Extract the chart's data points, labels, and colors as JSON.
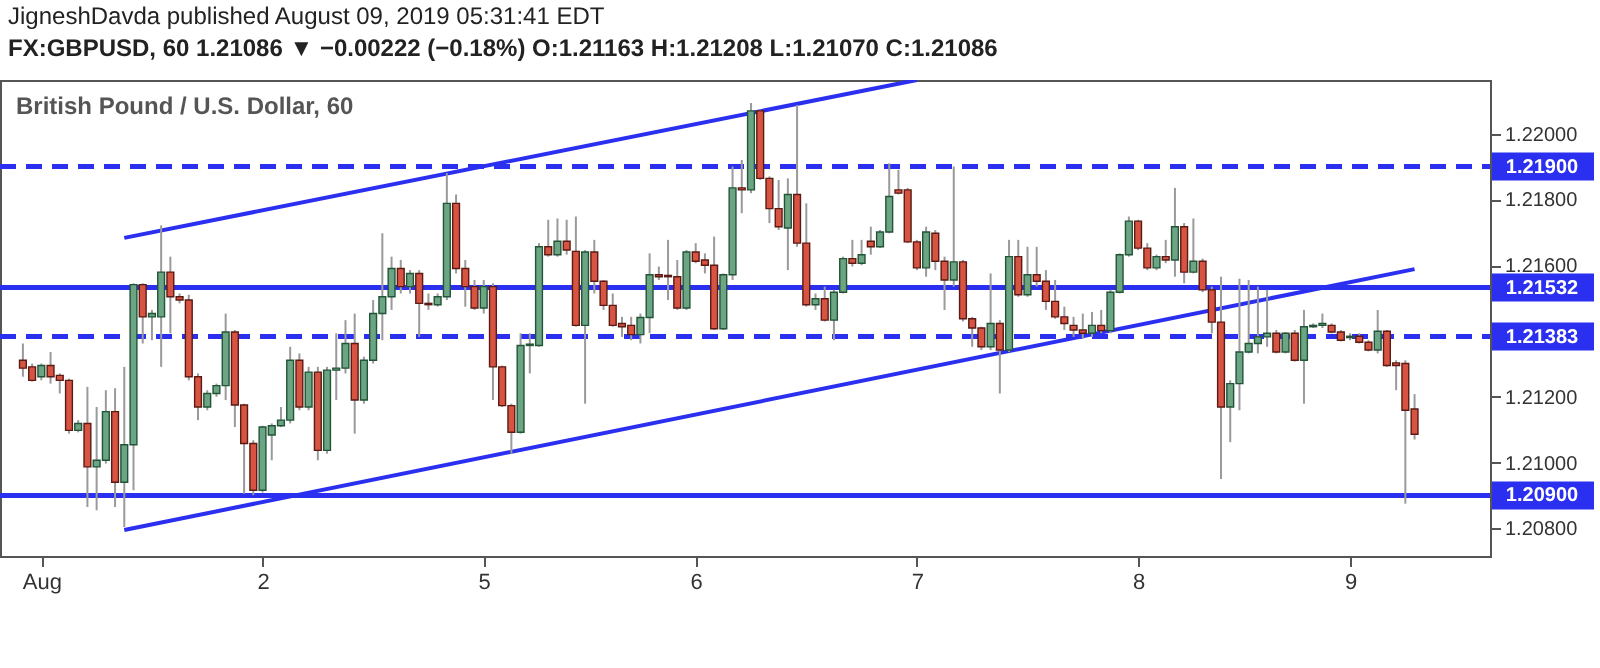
{
  "chart_data": {
    "type": "candlestick",
    "title": "British Pound / U.S. Dollar, 60",
    "annotations": [
      "JigneshDavda published August 09, 2019 05:31:41 EDT",
      "FX:GBPUSD, 60  1.21086 ▼ −0.00222 (−0.18%)  O:1.21163  H:1.21208  L:1.21070  C:1.21086"
    ],
    "categories": [
      null,
      null,
      "Aug",
      null,
      null,
      null,
      null,
      null,
      null,
      null,
      null,
      null,
      null,
      null,
      null,
      null,
      null,
      null,
      null,
      null,
      null,
      null,
      null,
      null,
      null,
      null,
      "2",
      null,
      null,
      null,
      null,
      null,
      null,
      null,
      null,
      null,
      null,
      null,
      null,
      null,
      null,
      null,
      null,
      null,
      null,
      null,
      null,
      null,
      null,
      null,
      "5",
      null,
      null,
      null,
      null,
      null,
      null,
      null,
      null,
      null,
      null,
      null,
      null,
      null,
      null,
      null,
      null,
      null,
      null,
      null,
      null,
      null,
      null,
      "6",
      null,
      null,
      null,
      null,
      null,
      null,
      null,
      null,
      null,
      null,
      null,
      null,
      null,
      null,
      null,
      null,
      null,
      null,
      null,
      null,
      null,
      null,
      null,
      "7",
      null,
      null,
      null,
      null,
      null,
      null,
      null,
      null,
      null,
      null,
      null,
      null,
      null,
      null,
      null,
      null,
      null,
      null,
      null,
      null,
      null,
      null,
      null,
      "8",
      null,
      null,
      null,
      null,
      null,
      null,
      null,
      null,
      null,
      null,
      null,
      null,
      null,
      null,
      null,
      null,
      null,
      null,
      null,
      null,
      null,
      null,
      "9",
      null,
      null,
      null,
      null,
      null,
      null,
      null
    ],
    "ohlc": [
      [
        1.21311,
        1.21362,
        1.21261,
        1.21287
      ],
      [
        1.21291,
        1.21301,
        1.21246,
        1.2125
      ],
      [
        1.21261,
        1.21301,
        1.2125,
        1.21295
      ],
      [
        1.21295,
        1.21336,
        1.2124,
        1.21261
      ],
      [
        1.21265,
        1.21271,
        1.2121,
        1.2125
      ],
      [
        1.2125,
        1.21255,
        1.21088,
        1.21098
      ],
      [
        1.21098,
        1.21129,
        1.21092,
        1.21119
      ],
      [
        1.21119,
        1.2123,
        1.20865,
        1.20987
      ],
      [
        1.20987,
        1.21169,
        1.20855,
        1.21007
      ],
      [
        1.21007,
        1.2122,
        1.20997,
        1.21155
      ],
      [
        1.21155,
        1.21226,
        1.20865,
        1.2094
      ],
      [
        1.2094,
        1.21291,
        1.20804,
        1.21054
      ],
      [
        1.21054,
        1.21545,
        1.20916,
        1.21541
      ],
      [
        1.21541,
        1.21545,
        1.21362,
        1.21443
      ],
      [
        1.21443,
        1.21464,
        1.21372,
        1.21453
      ],
      [
        1.21443,
        1.21721,
        1.21291,
        1.21579
      ],
      [
        1.21579,
        1.21626,
        1.21393,
        1.21504
      ],
      [
        1.21504,
        1.21514,
        1.21484,
        1.21494
      ],
      [
        1.21494,
        1.2151,
        1.2125,
        1.21261
      ],
      [
        1.21261,
        1.21271,
        1.21129,
        1.21169
      ],
      [
        1.21169,
        1.2122,
        1.21159,
        1.2121
      ],
      [
        1.2121,
        1.2124,
        1.212,
        1.21234
      ],
      [
        1.21234,
        1.21453,
        1.2119,
        1.21397
      ],
      [
        1.21397,
        1.21403,
        1.21108,
        1.21175
      ],
      [
        1.21175,
        1.21179,
        1.20905,
        1.21058
      ],
      [
        1.21058,
        1.21068,
        1.20901,
        1.20916
      ],
      [
        1.20916,
        1.21112,
        1.20909,
        1.21108
      ],
      [
        1.21084,
        1.21119,
        1.21007,
        1.21112
      ],
      [
        1.21112,
        1.21169,
        1.21108,
        1.21129
      ],
      [
        1.21129,
        1.21352,
        1.21119,
        1.21311
      ],
      [
        1.21311,
        1.21332,
        1.21159,
        1.21169
      ],
      [
        1.21169,
        1.21291,
        1.21159,
        1.21275
      ],
      [
        1.21275,
        1.21291,
        1.21007,
        1.21037
      ],
      [
        1.21037,
        1.21291,
        1.21027,
        1.21281
      ],
      [
        1.21281,
        1.21393,
        1.2119,
        1.21287
      ],
      [
        1.21287,
        1.21433,
        1.21271,
        1.21362
      ],
      [
        1.21362,
        1.21453,
        1.21088,
        1.2119
      ],
      [
        1.2119,
        1.21322,
        1.21179,
        1.21311
      ],
      [
        1.21311,
        1.21494,
        1.21301,
        1.21453
      ],
      [
        1.21453,
        1.21697,
        1.21372,
        1.21504
      ],
      [
        1.21504,
        1.21626,
        1.21464,
        1.2159
      ],
      [
        1.2159,
        1.21616,
        1.21514,
        1.21535
      ],
      [
        1.21535,
        1.21585,
        1.21514,
        1.21575
      ],
      [
        1.21575,
        1.21585,
        1.21382,
        1.21484
      ],
      [
        1.21484,
        1.21514,
        1.21464,
        1.2148
      ],
      [
        1.2148,
        1.21514,
        1.21474,
        1.21504
      ],
      [
        1.21504,
        1.2188,
        1.21494,
        1.21788
      ],
      [
        1.21788,
        1.21815,
        1.21575,
        1.2159
      ],
      [
        1.2159,
        1.21616,
        1.21474,
        1.21535
      ],
      [
        1.21535,
        1.21555,
        1.21464,
        1.2147
      ],
      [
        1.2147,
        1.21555,
        1.21453,
        1.21535
      ],
      [
        1.21535,
        1.21545,
        1.2119,
        1.21291
      ],
      [
        1.21291,
        1.21295,
        1.21169,
        1.21173
      ],
      [
        1.21173,
        1.21179,
        1.21027,
        1.21092
      ],
      [
        1.21092,
        1.21393,
        1.21088,
        1.21356
      ],
      [
        1.21356,
        1.21393,
        1.21271,
        1.2136
      ],
      [
        1.21356,
        1.21667,
        1.21352,
        1.21656
      ],
      [
        1.21656,
        1.21738,
        1.21626,
        1.21632
      ],
      [
        1.21632,
        1.21742,
        1.21626,
        1.21673
      ],
      [
        1.21673,
        1.21738,
        1.21632,
        1.21646
      ],
      [
        1.21642,
        1.21748,
        1.21413,
        1.21417
      ],
      [
        1.21417,
        1.21646,
        1.21179,
        1.2164
      ],
      [
        1.2164,
        1.21677,
        1.21514,
        1.21551
      ],
      [
        1.21551,
        1.21555,
        1.21464,
        1.21478
      ],
      [
        1.21478,
        1.21514,
        1.21413,
        1.21417
      ],
      [
        1.21423,
        1.21443,
        1.21382,
        1.21413
      ],
      [
        1.21417,
        1.21443,
        1.21372,
        1.21389
      ],
      [
        1.21389,
        1.21453,
        1.21362,
        1.21441
      ],
      [
        1.21441,
        1.21636,
        1.21393,
        1.21571
      ],
      [
        1.21571,
        1.21596,
        1.21555,
        1.21565
      ],
      [
        1.21569,
        1.21677,
        1.21494,
        1.21565
      ],
      [
        1.21565,
        1.21616,
        1.21464,
        1.2147
      ],
      [
        1.2147,
        1.21646,
        1.21464,
        1.2164
      ],
      [
        1.2164,
        1.21667,
        1.21606,
        1.21612
      ],
      [
        1.21616,
        1.21636,
        1.21575,
        1.216
      ],
      [
        1.216,
        1.21687,
        1.21403,
        1.21407
      ],
      [
        1.21407,
        1.21575,
        1.21403,
        1.21571
      ],
      [
        1.21571,
        1.219,
        1.21555,
        1.21835
      ],
      [
        1.21835,
        1.2192,
        1.21758,
        1.21829
      ],
      [
        1.21829,
        1.22093,
        1.21819,
        1.22069
      ],
      [
        1.22069,
        1.22073,
        1.21859,
        1.21864
      ],
      [
        1.21864,
        1.2187,
        1.21728,
        1.21772
      ],
      [
        1.21772,
        1.21859,
        1.21707,
        1.21717
      ],
      [
        1.21713,
        1.21864,
        1.21585,
        1.21815
      ],
      [
        1.21815,
        1.22087,
        1.21656,
        1.21667
      ],
      [
        1.21667,
        1.21788,
        1.21474,
        1.2148
      ],
      [
        1.2148,
        1.21514,
        1.21464,
        1.21498
      ],
      [
        1.21498,
        1.21535,
        1.21429,
        1.21433
      ],
      [
        1.21433,
        1.21525,
        1.21372,
        1.21518
      ],
      [
        1.21518,
        1.21626,
        1.21514,
        1.2162
      ],
      [
        1.2162,
        1.21677,
        1.21596,
        1.21606
      ],
      [
        1.21606,
        1.21677,
        1.216,
        1.21632
      ],
      [
        1.21673,
        1.21717,
        1.21632,
        1.21656
      ],
      [
        1.21656,
        1.21707,
        1.21652,
        1.21701
      ],
      [
        1.21701,
        1.2191,
        1.21697,
        1.21809
      ],
      [
        1.21829,
        1.2189,
        1.21815,
        1.21819
      ],
      [
        1.21829,
        1.21835,
        1.21667,
        1.21671
      ],
      [
        1.21671,
        1.21677,
        1.21585,
        1.21592
      ],
      [
        1.21592,
        1.21717,
        1.21565,
        1.21701
      ],
      [
        1.21697,
        1.21707,
        1.21585,
        1.21612
      ],
      [
        1.21612,
        1.21626,
        1.21464,
        1.21555
      ],
      [
        1.21555,
        1.219,
        1.21535,
        1.2161
      ],
      [
        1.2161,
        1.21616,
        1.21429,
        1.21437
      ],
      [
        1.21437,
        1.21443,
        1.21352,
        1.21409
      ],
      [
        1.21409,
        1.21413,
        1.21342,
        1.21352
      ],
      [
        1.21352,
        1.21575,
        1.21342,
        1.21423
      ],
      [
        1.21423,
        1.21433,
        1.2121,
        1.21342
      ],
      [
        1.21342,
        1.21677,
        1.21336,
        1.21626
      ],
      [
        1.21626,
        1.21677,
        1.21504,
        1.2151
      ],
      [
        1.2151,
        1.21656,
        1.21504,
        1.21571
      ],
      [
        1.21571,
        1.21656,
        1.21535,
        1.21551
      ],
      [
        1.21551,
        1.21585,
        1.21464,
        1.2149
      ],
      [
        1.2149,
        1.21555,
        1.21437,
        1.21443
      ],
      [
        1.21443,
        1.21474,
        1.21403,
        1.21423
      ],
      [
        1.21417,
        1.21443,
        1.21382,
        1.21403
      ],
      [
        1.21403,
        1.21453,
        1.21376,
        1.21393
      ],
      [
        1.21393,
        1.21458,
        1.21382,
        1.21417
      ],
      [
        1.21417,
        1.21464,
        1.21393,
        1.21401
      ],
      [
        1.21401,
        1.21525,
        1.21393,
        1.21518
      ],
      [
        1.21518,
        1.21636,
        1.21514,
        1.21632
      ],
      [
        1.21632,
        1.21748,
        1.21626,
        1.21734
      ],
      [
        1.21734,
        1.21738,
        1.21646,
        1.21652
      ],
      [
        1.21652,
        1.21667,
        1.21585,
        1.21592
      ],
      [
        1.21592,
        1.21632,
        1.21585,
        1.21626
      ],
      [
        1.21626,
        1.21677,
        1.21606,
        1.21616
      ],
      [
        1.21616,
        1.21835,
        1.21565,
        1.21717
      ],
      [
        1.21717,
        1.21728,
        1.21545,
        1.21579
      ],
      [
        1.21579,
        1.21742,
        1.21575,
        1.21612
      ],
      [
        1.21612,
        1.2162,
        1.21518,
        1.21525
      ],
      [
        1.21525,
        1.21535,
        1.21393,
        1.21427
      ],
      [
        1.21427,
        1.21565,
        1.2095,
        1.21169
      ],
      [
        1.21169,
        1.2125,
        1.21062,
        1.2124
      ],
      [
        1.2124,
        1.21559,
        1.21159,
        1.21336
      ],
      [
        1.21336,
        1.21555,
        1.21332,
        1.21362
      ],
      [
        1.21362,
        1.21535,
        1.21332,
        1.21382
      ],
      [
        1.21382,
        1.21525,
        1.21352,
        1.21393
      ],
      [
        1.21393,
        1.21403,
        1.21332,
        1.21336
      ],
      [
        1.21336,
        1.21397,
        1.21332,
        1.21393
      ],
      [
        1.21393,
        1.21403,
        1.21307,
        1.21311
      ],
      [
        1.21311,
        1.21464,
        1.21179,
        1.21413
      ],
      [
        1.21413,
        1.21423,
        1.21409,
        1.21417
      ],
      [
        1.21417,
        1.21453,
        1.21409,
        1.21423
      ],
      [
        1.21417,
        1.21423,
        1.21393,
        1.21397
      ],
      [
        1.21397,
        1.21403,
        1.21368,
        1.21372
      ],
      [
        1.2138,
        1.21393,
        1.21372,
        1.21384
      ],
      [
        1.21384,
        1.21393,
        1.21362,
        1.21366
      ],
      [
        1.21366,
        1.21372,
        1.21338,
        1.21342
      ],
      [
        1.21342,
        1.21464,
        1.21332,
        1.21399
      ],
      [
        1.21399,
        1.21403,
        1.21291,
        1.21295
      ],
      [
        1.21303,
        1.21311,
        1.2122,
        1.21295
      ],
      [
        1.21301,
        1.21311,
        1.20875,
        1.21159
      ],
      [
        1.21163,
        1.21208,
        1.2107,
        1.21086
      ]
    ],
    "series": [
      {
        "type": "line",
        "color": "#2b2ff0",
        "values": [
          null,
          null,
          null,
          null,
          null,
          null,
          null,
          null,
          null,
          null,
          null,
          1.21683,
          null,
          null,
          null,
          null,
          null,
          null,
          null,
          null,
          null,
          null,
          null,
          null,
          null,
          null,
          null,
          null,
          null,
          null,
          null,
          null,
          null,
          null,
          null,
          null,
          null,
          null,
          null,
          null,
          null,
          null,
          null,
          null,
          null,
          null,
          null,
          null,
          null,
          null,
          null,
          null,
          null,
          null,
          null,
          null,
          null,
          null,
          null,
          null,
          null,
          null,
          null,
          null,
          null,
          null,
          null,
          null,
          null,
          null,
          null,
          null,
          null,
          null,
          null,
          null,
          null,
          null,
          null,
          null,
          null,
          null,
          null,
          null,
          null,
          null,
          null,
          null,
          null,
          null,
          null,
          null,
          null,
          null,
          null,
          null,
          null,
          1.22163,
          null,
          null,
          null,
          null,
          null,
          null,
          null,
          null,
          null,
          null,
          null,
          null,
          null,
          null,
          null,
          null,
          null,
          null,
          null,
          null,
          null,
          null,
          null,
          null,
          null,
          null,
          null,
          null,
          null,
          null,
          null,
          null,
          null,
          null,
          null,
          null,
          null,
          null,
          null,
          null,
          null,
          null,
          null,
          null,
          null,
          null,
          null,
          null,
          null,
          null,
          null,
          null,
          null,
          null
        ]
      },
      {
        "type": "line",
        "color": "#2b2ff0",
        "values": [
          null,
          null,
          null,
          null,
          null,
          null,
          null,
          null,
          null,
          null,
          null,
          1.20795,
          null,
          null,
          null,
          null,
          null,
          null,
          null,
          null,
          null,
          null,
          null,
          null,
          null,
          null,
          null,
          null,
          null,
          null,
          null,
          null,
          null,
          null,
          null,
          null,
          null,
          null,
          null,
          null,
          null,
          null,
          null,
          null,
          null,
          null,
          null,
          null,
          null,
          null,
          null,
          null,
          null,
          null,
          null,
          null,
          null,
          null,
          null,
          null,
          null,
          null,
          null,
          null,
          null,
          null,
          null,
          null,
          null,
          null,
          null,
          null,
          null,
          null,
          null,
          null,
          null,
          null,
          null,
          null,
          null,
          null,
          null,
          null,
          null,
          null,
          null,
          null,
          null,
          null,
          null,
          null,
          null,
          null,
          null,
          null,
          null,
          null,
          null,
          null,
          null,
          null,
          null,
          null,
          null,
          null,
          null,
          null,
          null,
          null,
          null,
          null,
          null,
          null,
          null,
          null,
          null,
          null,
          null,
          null,
          null,
          null,
          null,
          null,
          null,
          null,
          null,
          null,
          null,
          null,
          null,
          null,
          null,
          null,
          null,
          null,
          null,
          null,
          null,
          null,
          null,
          null,
          null,
          null,
          null,
          null,
          null,
          null,
          null,
          null,
          null,
          1.21588
        ]
      }
    ],
    "ref_lines": [
      {
        "axis": "y",
        "value": 1.219,
        "label": "1.21900",
        "color": "#2b2ff0",
        "line_style": "dashed"
      },
      {
        "axis": "y",
        "value": 1.21532,
        "label": "1.21532",
        "color": "#2b2ff0",
        "line_style": "solid"
      },
      {
        "axis": "y",
        "value": 1.21383,
        "label": "1.21383",
        "color": "#2b2ff0",
        "line_style": "dashed"
      },
      {
        "axis": "y",
        "value": 1.209,
        "label": "1.20900",
        "color": "#2b2ff0",
        "line_style": "solid"
      }
    ],
    "ylim": [
      1.20716,
      1.22163
    ],
    "yticks": [
      {
        "value": 1.208,
        "label": "1.20800"
      },
      {
        "value": 1.21,
        "label": "1.21000"
      },
      {
        "value": 1.212,
        "label": "1.21200"
      },
      {
        "value": 1.216,
        "label": "1.21600"
      },
      {
        "value": 1.218,
        "label": "1.21800"
      },
      {
        "value": 1.22,
        "label": "1.22000"
      }
    ],
    "grid": false
  }
}
